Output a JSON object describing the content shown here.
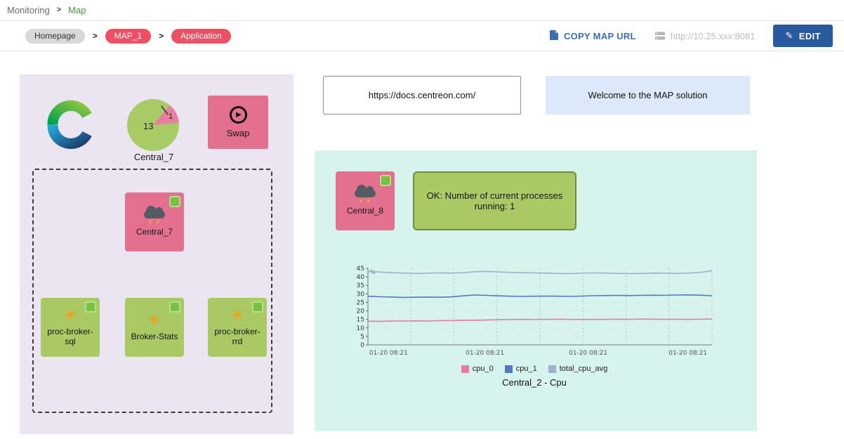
{
  "nav": {
    "monitoring": "Monitoring",
    "map": "Map"
  },
  "toolbar": {
    "pills": [
      {
        "label": "Homepage",
        "style": "gray"
      },
      {
        "label": "MAP_1",
        "style": "red"
      },
      {
        "label": "Application",
        "style": "red"
      }
    ],
    "copy_label": "COPY MAP URL",
    "server_url": "http://10.25.xxx:8081",
    "edit_label": "EDIT"
  },
  "colors": {
    "node_pink": "#e2708e",
    "node_green": "#a8c964",
    "status_ok_green": "#79c23f",
    "panel_left_bg": "#ebe5f2",
    "panel_right_bg": "#d6f3ed",
    "edit_button_blue": "#29599f",
    "pill_red": "#ef4f64"
  },
  "left_panel": {
    "gauge": {
      "main_value": "13",
      "slice_value": "1",
      "label": "Central_7"
    },
    "swap": {
      "label": "Swap"
    },
    "group": {
      "central": {
        "label": "Central_7"
      },
      "services": [
        {
          "label": "proc-broker-sql"
        },
        {
          "label": "Broker-Stats"
        },
        {
          "label": "proc-broker-rrd"
        }
      ]
    }
  },
  "info": {
    "docs_url": "https://docs.centreon.com/",
    "welcome": "Welcome to the MAP solution"
  },
  "right_panel": {
    "central": {
      "label": "Central_8"
    },
    "status": {
      "text": "OK: Number of current processes running: 1"
    }
  },
  "chart_data": {
    "type": "line",
    "title": "Central_2 - Cpu",
    "unit": "%",
    "ylim": [
      0,
      45
    ],
    "y_ticks": [
      0,
      5,
      10,
      15,
      20,
      25,
      30,
      35,
      40,
      45
    ],
    "x_tick_labels": [
      "01-20 08:21",
      "01-20 08:21",
      "01-20 08:21",
      "01-20 08:21"
    ],
    "grid": true,
    "legend_position": "bottom",
    "series": [
      {
        "name": "cpu_0",
        "color": "#e87ba0",
        "values": [
          13.9,
          13.8,
          14.0,
          14.0,
          14.1,
          14.0,
          14.2,
          14.3,
          14.5,
          14.4,
          14.6,
          14.8,
          14.9,
          15.0,
          14.9,
          15.0,
          15.1,
          15.0,
          14.9,
          15.0,
          15.0,
          15.1,
          15.0,
          15.2,
          15.1,
          15.0,
          15.1,
          15.0,
          15.1,
          15.2
        ]
      },
      {
        "name": "cpu_1",
        "color": "#5377c9",
        "values": [
          28.6,
          28.3,
          28.1,
          27.9,
          28.0,
          28.1,
          28.0,
          28.2,
          28.8,
          29.3,
          29.1,
          28.8,
          28.6,
          28.5,
          28.6,
          28.7,
          28.6,
          28.5,
          28.7,
          28.9,
          29.0,
          29.1,
          29.0,
          29.1,
          29.2,
          29.1,
          29.3,
          29.4,
          29.2,
          28.9
        ]
      },
      {
        "name": "total_cpu_avg",
        "color": "#9fb0cf",
        "values": [
          43.2,
          42.8,
          42.5,
          42.2,
          42.0,
          42.1,
          42.3,
          42.2,
          42.4,
          43.0,
          43.2,
          42.9,
          42.6,
          42.4,
          42.3,
          42.2,
          42.0,
          41.9,
          42.1,
          42.3,
          42.2,
          42.0,
          41.9,
          42.0,
          42.2,
          42.1,
          42.0,
          42.2,
          42.6,
          43.6
        ]
      }
    ]
  }
}
